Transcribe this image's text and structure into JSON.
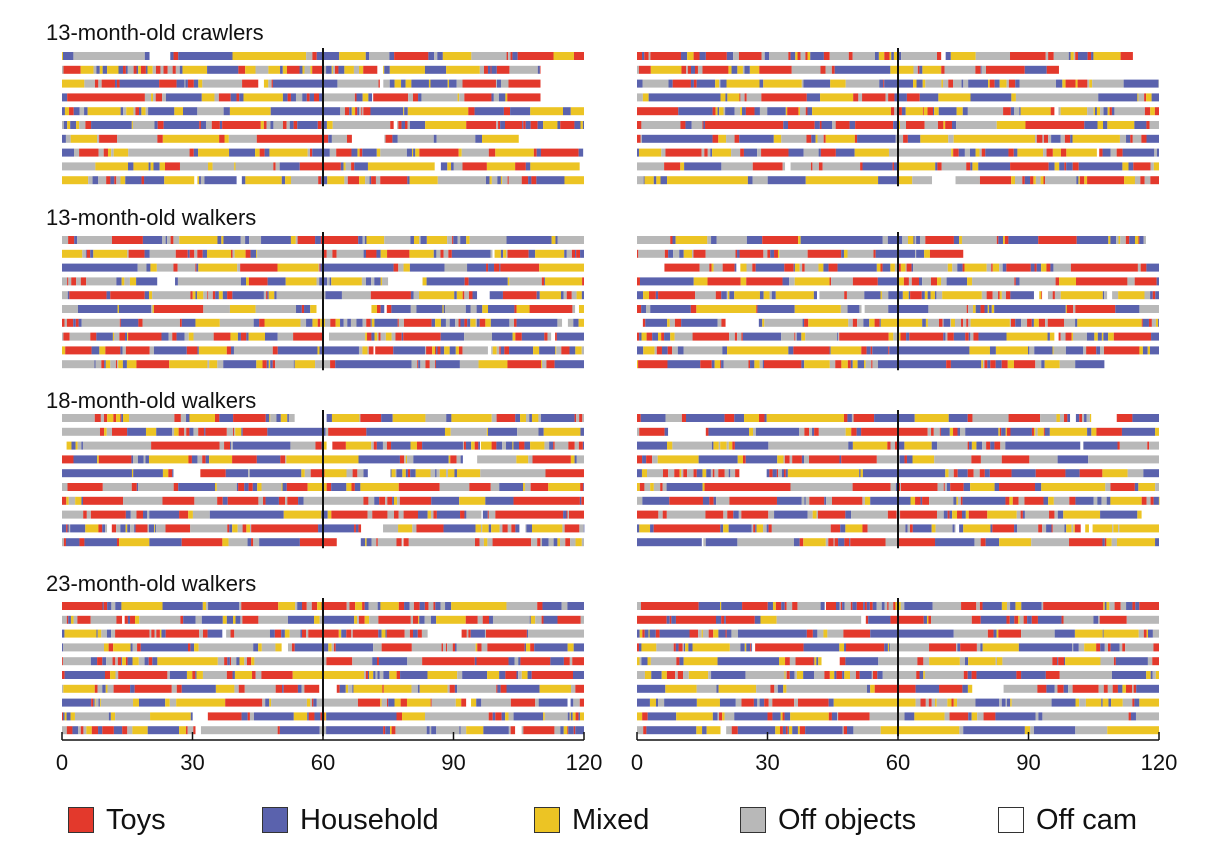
{
  "legend": {
    "items": [
      {
        "key": "toys",
        "label": "Toys",
        "color": "#e3392c"
      },
      {
        "key": "household",
        "label": "Household",
        "color": "#5a62ad"
      },
      {
        "key": "mixed",
        "label": "Mixed",
        "color": "#ecc424"
      },
      {
        "key": "off_objects",
        "label": "Off objects",
        "color": "#b8b8b8"
      },
      {
        "key": "off_cam",
        "label": "Off cam",
        "color": "#ffffff"
      }
    ]
  },
  "chart_data": {
    "type": "heatmap",
    "x_unit": "time",
    "xlim": [
      0,
      120
    ],
    "xticks": [
      0,
      30,
      60,
      90,
      120
    ],
    "marker_line_x": 60,
    "category_colors": {
      "toys": "#e3392c",
      "household": "#5a62ad",
      "mixed": "#ecc424",
      "off_objects": "#b8b8b8",
      "off_cam": "#ffffff"
    },
    "groups": [
      {
        "title": "13-month-old crawlers",
        "panels": [
          {
            "end_times": [
              120,
              110,
              110,
              110,
              120,
              120,
              105,
              120,
              119,
              120
            ]
          },
          {
            "end_times": [
              114,
              97,
              120,
              120,
              120,
              120,
              120,
              120,
              120,
              120
            ]
          }
        ],
        "dominant": [
          [
            "toys",
            "household",
            "mixed",
            "off_objects"
          ],
          [
            "household",
            "off_objects",
            "toys",
            "mixed"
          ]
        ]
      },
      {
        "title": "13-month-old walkers",
        "panels": [
          {
            "end_times": [
              120,
              120,
              120,
              120,
              120,
              120,
              120,
              120,
              120,
              120
            ]
          },
          {
            "end_times": [
              117,
              75,
              120,
              120,
              120,
              120,
              120,
              120,
              120,
              120
            ]
          }
        ]
      },
      {
        "title": "18-month-old walkers",
        "panels": [
          {
            "end_times": [
              120,
              120,
              120,
              120,
              120,
              120,
              120,
              120,
              120,
              120
            ]
          },
          {
            "end_times": [
              120,
              120,
              120,
              120,
              120,
              120,
              120,
              116,
              120,
              120
            ]
          }
        ]
      },
      {
        "title": "23-month-old walkers",
        "panels": [
          {
            "end_times": [
              120,
              120,
              120,
              120,
              120,
              120,
              120,
              120,
              120,
              120
            ]
          },
          {
            "end_times": [
              120,
              120,
              120,
              120,
              120,
              120,
              120,
              120,
              120,
              120
            ]
          }
        ]
      }
    ]
  }
}
